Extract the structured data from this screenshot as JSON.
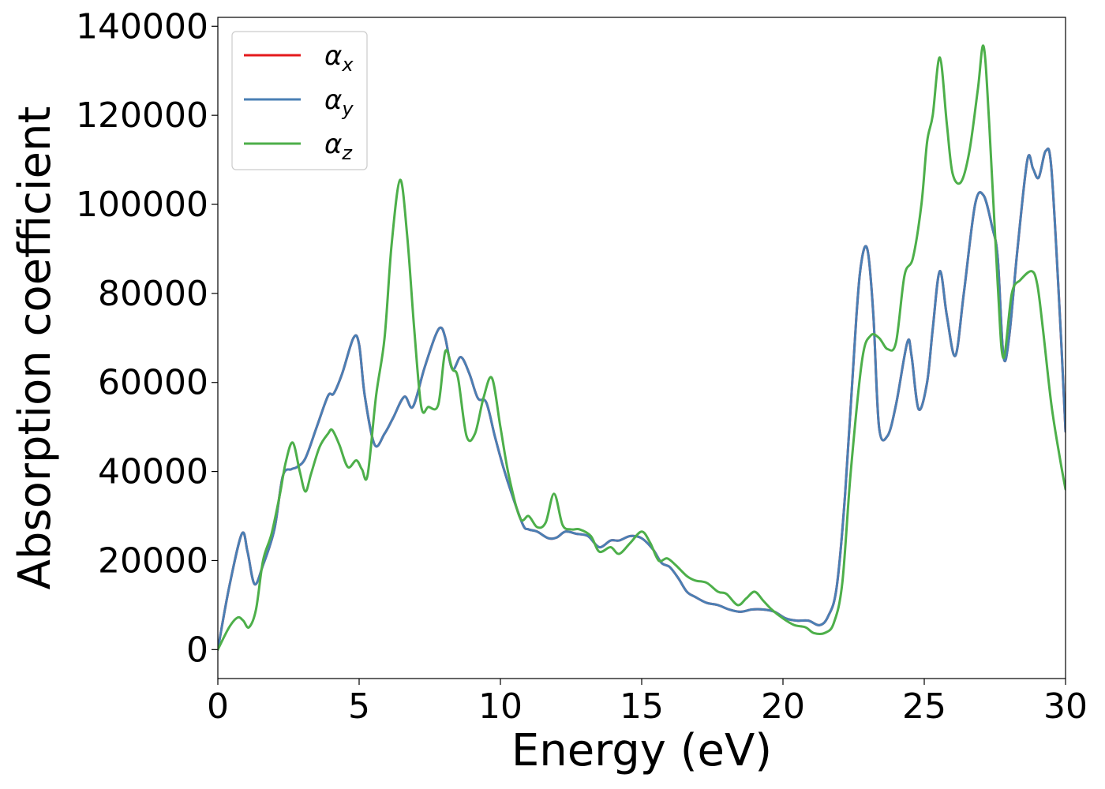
{
  "chart_data": {
    "type": "line",
    "title": "",
    "xlabel": "Energy (eV)",
    "ylabel": "Absorption coefficient",
    "xlim": [
      0,
      30
    ],
    "ylim": [
      -6500,
      142000
    ],
    "xticks": [
      0,
      5,
      10,
      15,
      20,
      25,
      30
    ],
    "yticks": [
      0,
      20000,
      40000,
      60000,
      80000,
      100000,
      120000,
      140000
    ],
    "grid": false,
    "legend_position": "top-left",
    "series": [
      {
        "name": "α_x",
        "label_base": "α",
        "label_sub": "x",
        "color": "#e41a1c",
        "x": [
          0,
          0.4,
          0.85,
          1.05,
          1.3,
          1.6,
          2.0,
          2.3,
          2.6,
          2.8,
          3.1,
          3.5,
          3.9,
          4.1,
          4.4,
          4.8,
          5.0,
          5.2,
          5.55,
          5.9,
          6.2,
          6.6,
          6.9,
          7.3,
          7.7,
          7.9,
          8.05,
          8.3,
          8.6,
          8.9,
          9.2,
          9.5,
          9.8,
          10.1,
          10.4,
          10.8,
          11.0,
          11.3,
          11.7,
          12.0,
          12.3,
          12.7,
          13.1,
          13.5,
          13.9,
          14.2,
          14.6,
          15.0,
          15.4,
          15.7,
          16.0,
          16.3,
          16.6,
          16.9,
          17.3,
          17.7,
          18.1,
          18.5,
          18.9,
          19.3,
          19.7,
          20.1,
          20.5,
          20.9,
          21.3,
          21.6,
          21.9,
          22.2,
          22.6,
          22.8,
          23.0,
          23.2,
          23.4,
          23.7,
          24.0,
          24.4,
          24.55,
          24.8,
          25.1,
          25.3,
          25.55,
          25.8,
          26.1,
          26.4,
          26.8,
          27.1,
          27.4,
          27.6,
          27.8,
          28.0,
          28.3,
          28.65,
          28.85,
          29.05,
          29.3,
          29.5,
          29.8,
          30.0
        ],
        "y": [
          0,
          14000,
          26000,
          22000,
          14700,
          19000,
          27000,
          39000,
          40500,
          41000,
          43000,
          50000,
          57000,
          57500,
          62000,
          70000,
          68500,
          57000,
          46000,
          48500,
          52000,
          56800,
          54500,
          63000,
          70500,
          72300,
          70000,
          63000,
          65700,
          62000,
          56500,
          55500,
          48000,
          41000,
          35000,
          28000,
          27000,
          26500,
          25000,
          25200,
          26500,
          26000,
          25500,
          23000,
          24500,
          24500,
          25500,
          25000,
          22500,
          19500,
          18500,
          16000,
          13000,
          11800,
          10500,
          10000,
          9000,
          8500,
          9000,
          9000,
          8500,
          7000,
          6500,
          6500,
          5500,
          7500,
          14000,
          35000,
          75000,
          88000,
          89500,
          75000,
          50000,
          48000,
          55000,
          69000,
          66000,
          54000,
          60000,
          72000,
          85000,
          75000,
          66000,
          80000,
          100000,
          102000,
          95000,
          88000,
          66000,
          70000,
          90000,
          110000,
          108000,
          106000,
          112000,
          108000,
          75000,
          49000
        ]
      },
      {
        "name": "α_y",
        "label_base": "α",
        "label_sub": "y",
        "color": "#4a7fb4",
        "x": [
          0,
          0.4,
          0.85,
          1.05,
          1.3,
          1.6,
          2.0,
          2.3,
          2.6,
          2.8,
          3.1,
          3.5,
          3.9,
          4.1,
          4.4,
          4.8,
          5.0,
          5.2,
          5.55,
          5.9,
          6.2,
          6.6,
          6.9,
          7.3,
          7.7,
          7.9,
          8.05,
          8.3,
          8.6,
          8.9,
          9.2,
          9.5,
          9.8,
          10.1,
          10.4,
          10.8,
          11.0,
          11.3,
          11.7,
          12.0,
          12.3,
          12.7,
          13.1,
          13.5,
          13.9,
          14.2,
          14.6,
          15.0,
          15.4,
          15.7,
          16.0,
          16.3,
          16.6,
          16.9,
          17.3,
          17.7,
          18.1,
          18.5,
          18.9,
          19.3,
          19.7,
          20.1,
          20.5,
          20.9,
          21.3,
          21.6,
          21.9,
          22.2,
          22.6,
          22.8,
          23.0,
          23.2,
          23.4,
          23.7,
          24.0,
          24.4,
          24.55,
          24.8,
          25.1,
          25.3,
          25.55,
          25.8,
          26.1,
          26.4,
          26.8,
          27.1,
          27.4,
          27.6,
          27.8,
          28.0,
          28.3,
          28.65,
          28.85,
          29.05,
          29.3,
          29.5,
          29.8,
          30.0
        ],
        "y": [
          0,
          14000,
          26000,
          22000,
          14700,
          19000,
          27000,
          39000,
          40500,
          41000,
          43000,
          50000,
          57000,
          57500,
          62000,
          70000,
          68500,
          57000,
          46000,
          48500,
          52000,
          56800,
          54500,
          63000,
          70500,
          72300,
          70000,
          63000,
          65700,
          62000,
          56500,
          55500,
          48000,
          41000,
          35000,
          28000,
          27000,
          26500,
          25000,
          25200,
          26500,
          26000,
          25500,
          23000,
          24500,
          24500,
          25500,
          25000,
          22500,
          19500,
          18500,
          16000,
          13000,
          11800,
          10500,
          10000,
          9000,
          8500,
          9000,
          9000,
          8500,
          7000,
          6500,
          6500,
          5500,
          7500,
          14000,
          35000,
          75000,
          88000,
          89500,
          75000,
          50000,
          48000,
          55000,
          69000,
          66000,
          54000,
          60000,
          72000,
          85000,
          75000,
          66000,
          80000,
          100000,
          102000,
          95000,
          88000,
          66000,
          70000,
          90000,
          110000,
          108000,
          106000,
          112000,
          108000,
          75000,
          49000
        ]
      },
      {
        "name": "α_z",
        "label_base": "α",
        "label_sub": "z",
        "color": "#4daf4a",
        "x": [
          0,
          0.4,
          0.7,
          0.9,
          1.1,
          1.35,
          1.6,
          1.9,
          2.2,
          2.4,
          2.65,
          2.9,
          3.1,
          3.3,
          3.6,
          3.9,
          4.05,
          4.3,
          4.6,
          4.9,
          5.1,
          5.3,
          5.6,
          5.9,
          6.15,
          6.45,
          6.7,
          6.95,
          7.2,
          7.45,
          7.8,
          8.05,
          8.3,
          8.5,
          8.8,
          9.1,
          9.4,
          9.7,
          10.0,
          10.3,
          10.7,
          11.0,
          11.3,
          11.6,
          11.9,
          12.2,
          12.5,
          12.8,
          13.2,
          13.5,
          13.9,
          14.2,
          14.6,
          15.0,
          15.3,
          15.6,
          15.9,
          16.2,
          16.6,
          16.9,
          17.3,
          17.7,
          18.0,
          18.4,
          18.7,
          19.0,
          19.3,
          19.6,
          20.0,
          20.4,
          20.8,
          21.1,
          21.5,
          21.8,
          22.1,
          22.4,
          22.8,
          23.1,
          23.4,
          23.7,
          24.0,
          24.3,
          24.6,
          24.9,
          25.1,
          25.3,
          25.55,
          25.8,
          26.0,
          26.3,
          26.6,
          26.9,
          27.1,
          27.3,
          27.6,
          27.8,
          28.1,
          28.4,
          28.8,
          29.0,
          29.2,
          29.5,
          29.8,
          30.0
        ],
        "y": [
          0,
          5000,
          7200,
          6500,
          5000,
          9000,
          20000,
          26000,
          35000,
          42000,
          46500,
          40000,
          35500,
          39500,
          45500,
          48500,
          49300,
          46000,
          41000,
          42500,
          40500,
          39200,
          57000,
          70000,
          91000,
          105500,
          93000,
          72000,
          54500,
          54500,
          55000,
          67000,
          63000,
          61000,
          48000,
          48500,
          56500,
          61000,
          50000,
          39000,
          29500,
          30000,
          27500,
          28500,
          35000,
          28000,
          27000,
          27000,
          25500,
          22000,
          23000,
          21500,
          24000,
          26500,
          24000,
          20000,
          20500,
          19000,
          16500,
          15500,
          15000,
          13000,
          12500,
          10000,
          11500,
          13000,
          11000,
          9000,
          7000,
          5500,
          5000,
          3700,
          3800,
          6000,
          15000,
          40000,
          65000,
          70500,
          70000,
          67500,
          69000,
          84000,
          88000,
          100000,
          114000,
          120000,
          133000,
          118000,
          107000,
          105000,
          112000,
          126000,
          135500,
          118000,
          82000,
          65500,
          80000,
          83000,
          85000,
          82000,
          72000,
          55000,
          43000,
          36000
        ]
      }
    ]
  }
}
